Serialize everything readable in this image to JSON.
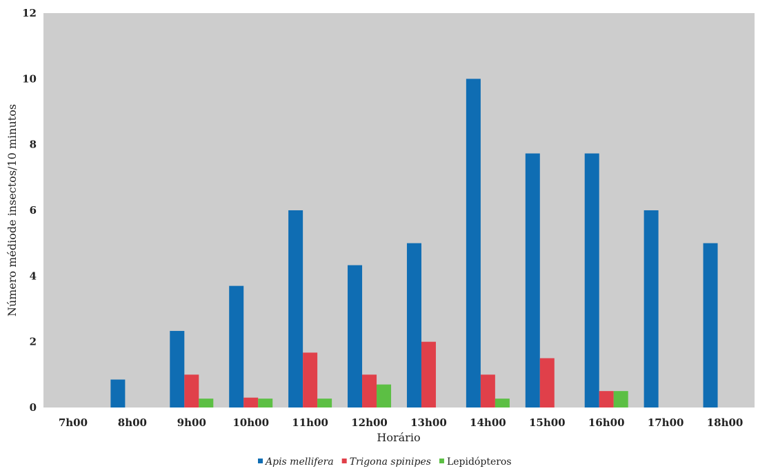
{
  "chart_data": {
    "type": "bar",
    "title": "",
    "xlabel": "Horário",
    "ylabel": "Número médiode insectos/10 minutos",
    "ylim": [
      0,
      12
    ],
    "yticks": [
      0,
      2,
      4,
      6,
      8,
      10,
      12
    ],
    "categories": [
      "7h00",
      "8h00",
      "9h00",
      "10h00",
      "11h00",
      "12h00",
      "13h00",
      "14h00",
      "15h00",
      "16h00",
      "17h00",
      "18h00"
    ],
    "series": [
      {
        "name": "Apis mellifera",
        "italic": true,
        "color": "#0f6db3",
        "values": [
          0,
          0.85,
          2.33,
          3.7,
          6.0,
          4.33,
          5.0,
          10.0,
          7.73,
          7.73,
          6.0,
          5.0
        ]
      },
      {
        "name": "Trigona spinipes",
        "italic": true,
        "color": "#e0404a",
        "values": [
          0,
          0,
          1.0,
          0.3,
          1.67,
          1.0,
          2.0,
          1.0,
          1.5,
          0.5,
          0,
          0
        ]
      },
      {
        "name": "Lepidópteros",
        "italic": false,
        "color": "#5cbf44",
        "values": [
          0,
          0,
          0.27,
          0.27,
          0.27,
          0.7,
          0,
          0.27,
          0,
          0.5,
          0,
          0
        ]
      }
    ],
    "grid": false,
    "legend_position": "bottom",
    "plot_background": "#cdcdcd"
  }
}
